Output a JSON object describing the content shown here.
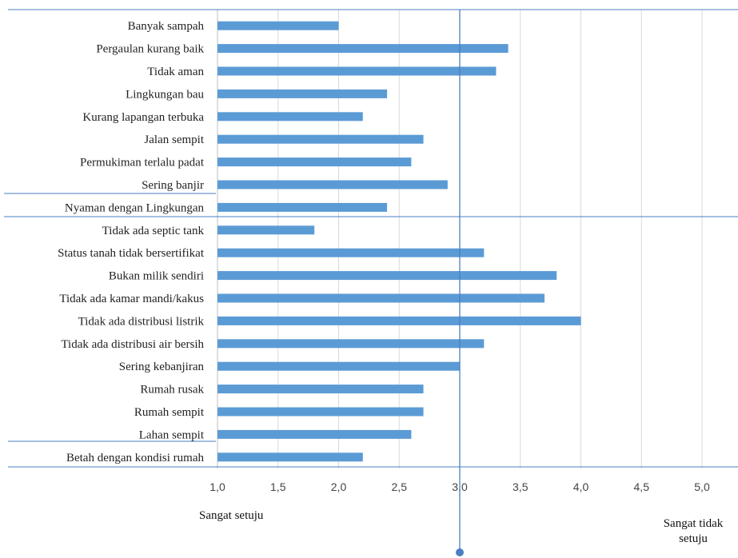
{
  "chart_data": {
    "type": "bar",
    "orientation": "horizontal",
    "categories": [
      "Banyak sampah",
      "Pergaulan kurang baik",
      "Tidak aman",
      "Lingkungan bau",
      "Kurang lapangan terbuka",
      "Jalan sempit",
      "Permukiman terlalu padat",
      "Sering banjir",
      "Nyaman dengan Lingkungan",
      "Tidak ada septic tank",
      "Status tanah tidak bersertifikat",
      "Bukan milik sendiri",
      "Tidak ada kamar mandi/kakus",
      "Tidak ada distribusi listrik",
      "Tidak ada distribusi air bersih",
      "Sering kebanjiran",
      "Rumah rusak",
      "Rumah sempit",
      "Lahan sempit",
      "Betah dengan kondisi rumah"
    ],
    "values": [
      2.0,
      3.4,
      3.3,
      2.4,
      2.2,
      2.7,
      2.6,
      2.9,
      2.4,
      1.8,
      3.2,
      3.8,
      3.7,
      4.0,
      3.2,
      3.0,
      2.7,
      2.7,
      2.6,
      2.2
    ],
    "xlim": [
      1.0,
      5.0
    ],
    "xticks": [
      "1,0",
      "1,5",
      "2,0",
      "2,5",
      "3,0",
      "3,5",
      "4,0",
      "4,5",
      "5,0"
    ],
    "xtick_values": [
      1.0,
      1.5,
      2.0,
      2.5,
      3.0,
      3.5,
      4.0,
      4.5,
      5.0
    ],
    "reference_line": 3.0,
    "grid": "vertical",
    "bar_color": "#5B9BD5",
    "grid_color": "#d9d9d9",
    "divider_color": "#4a7fc1"
  },
  "annotations": {
    "left": "Sangat setuju",
    "right": "Sangat tidak setuju"
  }
}
